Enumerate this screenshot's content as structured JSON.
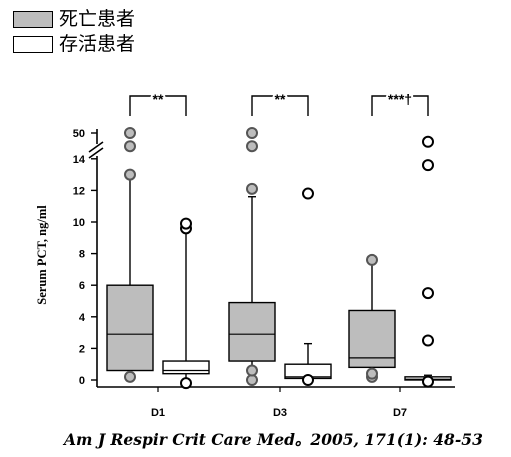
{
  "legend": {
    "items": [
      {
        "label": "死亡患者",
        "color": "#bdbdbd"
      },
      {
        "label": "存活患者",
        "color": "#ffffff"
      }
    ]
  },
  "citation": "Am J Respir Crit Care Med。2005, 171(1): 48-53",
  "colors": {
    "dead_fill": "#bdbdbd",
    "survivor_fill": "#ffffff",
    "stroke": "#000000"
  },
  "chart_data": {
    "type": "box",
    "ylabel": "Serum PCT, ng/ml",
    "xlabel": "",
    "y_ticks": [
      "0",
      "2",
      "4",
      "6",
      "8",
      "10",
      "12",
      "14",
      "50"
    ],
    "ylim": [
      0,
      50
    ],
    "axis_break": true,
    "categories": [
      "D1",
      "D3",
      "D7"
    ],
    "series": [
      {
        "name": "死亡患者",
        "boxes": [
          {
            "whisker_low": 0.3,
            "q1": 0.6,
            "median": 2.9,
            "q3": 6.0,
            "whisker_high": 13.0,
            "outliers": [
              0.2,
              13.0,
              47,
              50
            ]
          },
          {
            "whisker_low": 0.3,
            "q1": 1.2,
            "median": 2.9,
            "q3": 4.9,
            "whisker_high": 11.6,
            "outliers": [
              0.0,
              0.6,
              12.1,
              47,
              50
            ]
          },
          {
            "whisker_low": 0.2,
            "q1": 0.8,
            "median": 1.4,
            "q3": 4.4,
            "whisker_high": 7.4,
            "outliers": [
              0.2,
              0.4,
              7.6
            ]
          }
        ]
      },
      {
        "name": "存活患者",
        "boxes": [
          {
            "whisker_low": 0.0,
            "q1": 0.4,
            "median": 0.6,
            "q3": 1.2,
            "whisker_high": 9.4,
            "outliers": [
              -0.2,
              9.6,
              9.9
            ]
          },
          {
            "whisker_low": 0.0,
            "q1": 0.1,
            "median": 0.2,
            "q3": 1.0,
            "whisker_high": 2.3,
            "outliers": [
              0.0,
              11.8
            ]
          },
          {
            "whisker_low": 0.0,
            "q1": 0.0,
            "median": 0.05,
            "q3": 0.2,
            "whisker_high": 0.3,
            "outliers": [
              -0.1,
              2.5,
              5.5,
              48,
              13.6
            ]
          }
        ]
      }
    ],
    "significance": [
      "**",
      "**",
      "***†"
    ]
  }
}
